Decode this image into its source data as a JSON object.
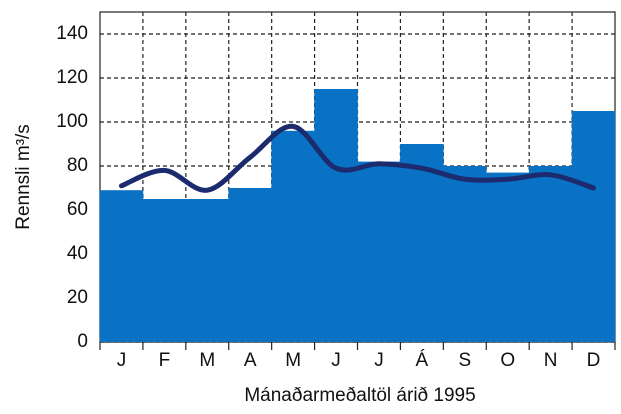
{
  "chart_data": {
    "type": "bar",
    "y_label": "Rennsli m³/s",
    "x_label": "Mánaðarmeðaltöl árið 1995",
    "categories": [
      "J",
      "F",
      "M",
      "A",
      "M",
      "J",
      "J",
      "Á",
      "S",
      "O",
      "N",
      "D"
    ],
    "series": [
      {
        "type": "bar",
        "color": "#0a72c4",
        "values": [
          69,
          65,
          65,
          70,
          96,
          115,
          82,
          90,
          80,
          77,
          80,
          105
        ]
      },
      {
        "type": "line",
        "color": "#1c2a6e",
        "values": [
          71,
          78,
          69,
          84,
          98,
          79,
          81,
          79,
          74,
          74,
          76,
          70
        ]
      }
    ],
    "ylim": [
      0,
      150
    ],
    "yticks": [
      0,
      20,
      40,
      60,
      80,
      100,
      120,
      140
    ],
    "grid": true
  }
}
